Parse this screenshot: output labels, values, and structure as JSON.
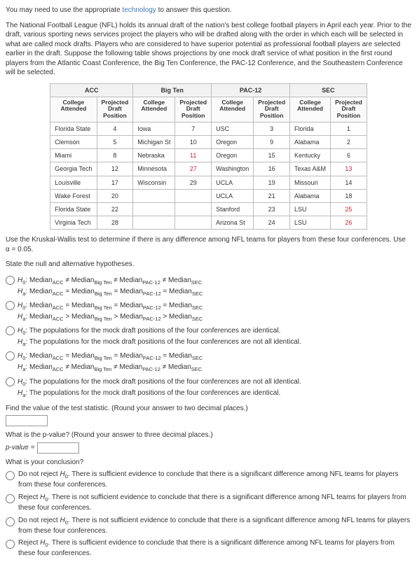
{
  "intro": {
    "line1_pre": "You may need to use the appropriate ",
    "line1_link": "technology",
    "line1_post": " to answer this question.",
    "para": "The National Football League (NFL) holds its annual draft of the nation's best college football players in April each year. Prior to the draft, various sporting news services project the players who will be drafted along with the order in which each will be selected in what are called mock drafts. Players who are considered to have superior potential as professional football players are selected earlier in the draft. Suppose the following table shows projections by one mock draft service of what position in the first round players from the Atlantic Coast Conference, the Big Ten Conference, the PAC-12 Conference, and the Southeastern Conference will be selected."
  },
  "table": {
    "groups": [
      "ACC",
      "Big Ten",
      "PAC-12",
      "SEC"
    ],
    "subheads": [
      "College Attended",
      "Projected Draft Position"
    ],
    "rows": [
      [
        "Florida State",
        "4",
        "Iowa",
        "7",
        "USC",
        "3",
        "Florida",
        "1"
      ],
      [
        "Clemson",
        "5",
        "Michigan St",
        "10",
        "Oregon",
        "9",
        "Alabama",
        "2"
      ],
      [
        "Miami",
        "8",
        "Nebraska",
        "11",
        "Oregon",
        "15",
        "Kentucky",
        "6"
      ],
      [
        "Georgia Tech",
        "12",
        "Minnesota",
        "27",
        "Washington",
        "16",
        "Texas A&M",
        "13"
      ],
      [
        "Louisville",
        "17",
        "Wisconsin",
        "29",
        "UCLA",
        "19",
        "Missouri",
        "14"
      ],
      [
        "Wake Forest",
        "20",
        "",
        "",
        "UCLA",
        "21",
        "Alabama",
        "18"
      ],
      [
        "Florida State",
        "22",
        "",
        "",
        "Stanford",
        "23",
        "LSU",
        "25"
      ],
      [
        "Virginia Tech",
        "28",
        "",
        "",
        "Arizona St",
        "24",
        "LSU",
        "26"
      ]
    ],
    "red_cells": [
      [
        2,
        3
      ],
      [
        3,
        3
      ],
      [
        3,
        7
      ],
      [
        6,
        7
      ],
      [
        7,
        7
      ]
    ]
  },
  "kw_prompt_pre": "Use the Kruskal-Wallis test to determine if there is any difference among NFL teams for players from these four conferences. Use ",
  "kw_alpha": "α = 0.05.",
  "state_hyp": "State the null and alternative hypotheses.",
  "hyp": {
    "h0": "H",
    "ha": "H",
    "labels": {
      "acc": "ACC",
      "big": "Big Ten",
      "pac": "PAC-12",
      "sec": "SEC"
    },
    "opt1": {
      "h0": "Median|ACC| ≠ Median|Big Ten| ≠ Median|PAC-12| ≠ Median|SEC|",
      "ha": "Median|ACC| = Median|Big Ten| = Median|PAC-12| = Median|SEC|"
    },
    "opt2": {
      "h0": "Median|ACC| = Median|Big Ten| = Median|PAC-12| = Median|SEC|",
      "ha": "Median|ACC| > Median|Big Ten| > Median|PAC-12| > Median|SEC|"
    },
    "opt3": {
      "h0": "The populations for the mock draft positions of the four conferences are identical.",
      "ha": "The populations for the mock draft positions of the four conferences are not all identical."
    },
    "opt4": {
      "h0": "Median|ACC| = Median|Big Ten| = Median|PAC-12| = Median|SEC|",
      "ha": "Median|ACC| ≠ Median|Big Ten| ≠ Median|PAC-12| ≠ Median|SEC|"
    },
    "opt5": {
      "h0": "The populations for the mock draft positions of the four conferences are not all identical.",
      "ha": "The populations for the mock draft positions of the four conferences are identical."
    }
  },
  "find_stat": "Find the value of the test statistic. (Round your answer to two decimal places.)",
  "pval_prompt": "What is the p-value? (Round your answer to three decimal places.)",
  "pval_label": "p-value =",
  "conclusion_q": "What is your conclusion?",
  "conclusions": [
    "Do not reject H₀. There is sufficient evidence to conclude that there is a significant difference among NFL teams for players from these four conferences.",
    "Reject H₀. There is not sufficient evidence to conclude that there is a significant difference among NFL teams for players from these four conferences.",
    "Do not reject H₀. There is not sufficient evidence to conclude that there is a significant difference among NFL teams for players from these four conferences.",
    "Reject H₀. There is sufficient evidence to conclude that there is a significant difference among NFL teams for players from these four conferences."
  ]
}
